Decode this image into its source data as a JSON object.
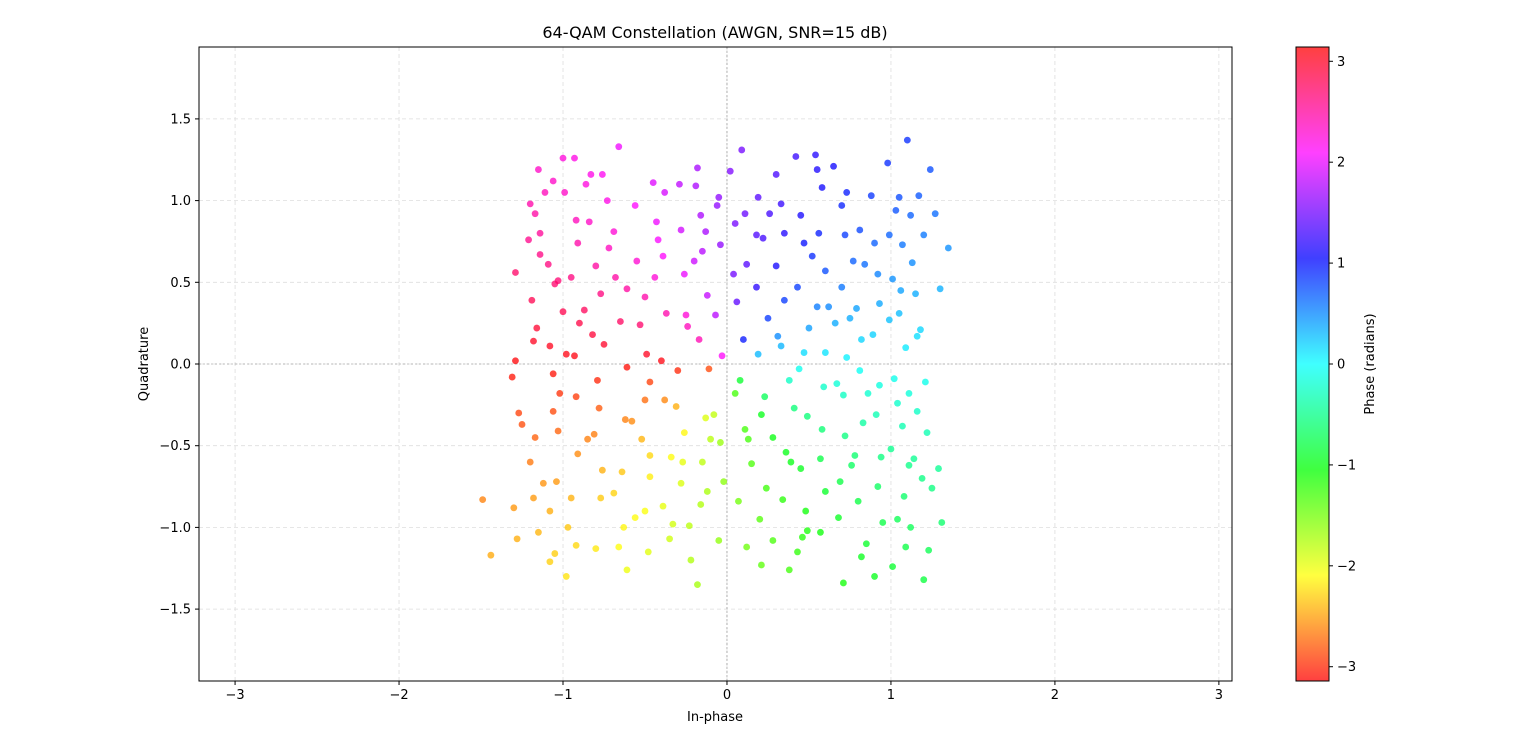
{
  "chart_data": {
    "type": "scatter",
    "title": "64-QAM Constellation (AWGN, SNR=15 dB)",
    "xlabel": "In-phase",
    "ylabel": "Quadrature",
    "xlim": [
      -3.22,
      3.08
    ],
    "ylim": [
      -1.94,
      1.94
    ],
    "xticks": [
      -3,
      -2,
      -1,
      0,
      1,
      2,
      3
    ],
    "xtick_labels": [
      "−3",
      "−2",
      "−1",
      "0",
      "1",
      "2",
      "3"
    ],
    "yticks": [
      -1.5,
      -1.0,
      -0.5,
      0.0,
      0.5,
      1.0,
      1.5
    ],
    "ytick_labels": [
      "−1.5",
      "−1.0",
      "−0.5",
      "0.0",
      "0.5",
      "1.0",
      "1.5"
    ],
    "grid": true,
    "grid_style": "dashed",
    "zero_reference_lines": true,
    "marker_alpha": 0.75,
    "colormap": "hsv",
    "colorbar": {
      "label": "Phase (radians)",
      "range": [
        -3.14159,
        3.14159
      ],
      "ticks": [
        -3,
        -2,
        -1,
        0,
        1,
        2,
        3
      ],
      "tick_labels": [
        "−3",
        "−2",
        "−1",
        "0",
        "1",
        "2",
        "3"
      ],
      "placement": "right"
    },
    "constellation": {
      "order": 64,
      "levels": [
        -1.08,
        -0.77,
        -0.46,
        -0.15,
        0.15,
        0.46,
        0.77,
        1.08
      ],
      "noise_snr_db": 15
    },
    "points": [
      [
        -1.49,
        -0.83
      ],
      [
        -1.44,
        -1.17
      ],
      [
        -1.3,
        -0.88
      ],
      [
        -1.28,
        -1.07
      ],
      [
        -1.27,
        -0.3
      ],
      [
        -1.29,
        0.02
      ],
      [
        -1.31,
        -0.08
      ],
      [
        -1.29,
        0.56
      ],
      [
        -1.21,
        0.76
      ],
      [
        -1.2,
        0.98
      ],
      [
        -1.17,
        0.92
      ],
      [
        -1.15,
        1.19
      ],
      [
        -1.11,
        1.05
      ],
      [
        -1.14,
        0.8
      ],
      [
        -1.19,
        0.39
      ],
      [
        -1.16,
        0.22
      ],
      [
        -1.17,
        -0.45
      ],
      [
        -1.2,
        -0.6
      ],
      [
        -1.18,
        -0.82
      ],
      [
        -1.15,
        -1.03
      ],
      [
        -1.08,
        -1.21
      ],
      [
        -1.05,
        -1.16
      ],
      [
        -1.03,
        0.51
      ],
      [
        -1.05,
        0.49
      ],
      [
        -1.0,
        0.32
      ],
      [
        -1.08,
        0.11
      ],
      [
        -1.06,
        -0.06
      ],
      [
        -1.02,
        -0.18
      ],
      [
        -1.06,
        -0.29
      ],
      [
        -1.04,
        -0.72
      ],
      [
        -1.08,
        -0.9
      ],
      [
        -1.0,
        1.26
      ],
      [
        -0.99,
        1.05
      ],
      [
        -0.93,
        1.26
      ],
      [
        -0.91,
        0.74
      ],
      [
        -0.95,
        0.53
      ],
      [
        -0.9,
        0.25
      ],
      [
        -0.93,
        0.05
      ],
      [
        -0.92,
        -0.2
      ],
      [
        -0.91,
        -0.55
      ],
      [
        -0.97,
        -1.0
      ],
      [
        -0.92,
        -1.11
      ],
      [
        -0.98,
        -1.3
      ],
      [
        -0.86,
        1.1
      ],
      [
        -0.84,
        0.87
      ],
      [
        -0.8,
        0.6
      ],
      [
        -0.77,
        0.43
      ],
      [
        -0.82,
        0.18
      ],
      [
        -0.79,
        -0.1
      ],
      [
        -0.81,
        -0.43
      ],
      [
        -0.76,
        -0.65
      ],
      [
        -0.77,
        -0.82
      ],
      [
        -0.8,
        -1.13
      ],
      [
        -0.76,
        1.16
      ],
      [
        -0.73,
        1.0
      ],
      [
        -0.69,
        0.81
      ],
      [
        -0.68,
        0.53
      ],
      [
        -0.65,
        0.26
      ],
      [
        -0.61,
        -0.02
      ],
      [
        -0.62,
        -0.34
      ],
      [
        -0.64,
        -0.66
      ],
      [
        -0.63,
        -1.0
      ],
      [
        -0.61,
        -1.26
      ],
      [
        -0.66,
        1.33
      ],
      [
        -0.56,
        0.97
      ],
      [
        -0.55,
        0.63
      ],
      [
        -0.5,
        0.41
      ],
      [
        -0.49,
        0.06
      ],
      [
        -0.47,
        -0.11
      ],
      [
        -0.52,
        -0.46
      ],
      [
        -0.47,
        -0.69
      ],
      [
        -0.5,
        -0.9
      ],
      [
        -0.48,
        -1.15
      ],
      [
        -0.45,
        1.11
      ],
      [
        -0.43,
        0.87
      ],
      [
        -0.39,
        0.66
      ],
      [
        -0.37,
        0.31
      ],
      [
        -0.4,
        0.02
      ],
      [
        -0.38,
        -0.22
      ],
      [
        -0.34,
        -0.57
      ],
      [
        -0.39,
        -0.87
      ],
      [
        -0.35,
        -1.07
      ],
      [
        -0.29,
        1.1
      ],
      [
        -0.28,
        0.82
      ],
      [
        -0.26,
        0.55
      ],
      [
        -0.24,
        0.23
      ],
      [
        -0.3,
        -0.04
      ],
      [
        -0.26,
        -0.42
      ],
      [
        -0.28,
        -0.73
      ],
      [
        -0.23,
        -0.99
      ],
      [
        -0.22,
        -1.2
      ],
      [
        -0.18,
        1.2
      ],
      [
        -0.16,
        0.91
      ],
      [
        -0.15,
        0.69
      ],
      [
        -0.12,
        0.42
      ],
      [
        -0.17,
        0.15
      ],
      [
        -0.11,
        -0.03
      ],
      [
        -0.13,
        -0.33
      ],
      [
        -0.15,
        -0.6
      ],
      [
        -0.12,
        -0.78
      ],
      [
        -0.18,
        -1.35
      ],
      [
        -0.06,
        0.97
      ],
      [
        -0.04,
        0.73
      ],
      [
        -0.07,
        0.3
      ],
      [
        -0.03,
        0.05
      ],
      [
        -0.04,
        -0.48
      ],
      [
        -0.02,
        -0.72
      ],
      [
        -0.05,
        -1.08
      ],
      [
        0.02,
        1.18
      ],
      [
        0.05,
        0.86
      ],
      [
        0.09,
        1.31
      ],
      [
        0.12,
        0.61
      ],
      [
        0.06,
        0.38
      ],
      [
        0.1,
        0.15
      ],
      [
        0.08,
        -0.1
      ],
      [
        0.11,
        -0.4
      ],
      [
        0.07,
        -0.84
      ],
      [
        0.12,
        -1.12
      ],
      [
        0.19,
        1.02
      ],
      [
        0.22,
        0.77
      ],
      [
        0.18,
        0.47
      ],
      [
        0.25,
        0.28
      ],
      [
        0.19,
        0.06
      ],
      [
        0.23,
        -0.2
      ],
      [
        0.28,
        -0.45
      ],
      [
        0.24,
        -0.76
      ],
      [
        0.2,
        -0.95
      ],
      [
        0.21,
        -1.23
      ],
      [
        0.3,
        1.16
      ],
      [
        0.33,
        0.98
      ],
      [
        0.3,
        0.6
      ],
      [
        0.35,
        0.39
      ],
      [
        0.33,
        0.11
      ],
      [
        0.38,
        -0.1
      ],
      [
        0.36,
        -0.54
      ],
      [
        0.34,
        -0.83
      ],
      [
        0.38,
        -1.26
      ],
      [
        0.42,
        1.27
      ],
      [
        0.45,
        0.91
      ],
      [
        0.47,
        0.74
      ],
      [
        0.43,
        0.47
      ],
      [
        0.5,
        0.22
      ],
      [
        0.44,
        -0.03
      ],
      [
        0.49,
        -0.32
      ],
      [
        0.45,
        -0.64
      ],
      [
        0.48,
        -0.9
      ],
      [
        0.46,
        -1.06
      ],
      [
        0.54,
        1.28
      ],
      [
        0.58,
        1.08
      ],
      [
        0.56,
        0.8
      ],
      [
        0.6,
        0.57
      ],
      [
        0.55,
        0.35
      ],
      [
        0.6,
        0.07
      ],
      [
        0.59,
        -0.14
      ],
      [
        0.57,
        -0.58
      ],
      [
        0.6,
        -0.78
      ],
      [
        0.57,
        -1.03
      ],
      [
        0.65,
        1.21
      ],
      [
        0.7,
        0.97
      ],
      [
        0.72,
        0.79
      ],
      [
        0.7,
        0.47
      ],
      [
        0.75,
        0.28
      ],
      [
        0.73,
        0.04
      ],
      [
        0.71,
        -0.19
      ],
      [
        0.72,
        -0.44
      ],
      [
        0.69,
        -0.72
      ],
      [
        0.71,
        -1.34
      ],
      [
        0.81,
        0.82
      ],
      [
        0.84,
        0.61
      ],
      [
        0.79,
        0.34
      ],
      [
        0.81,
        -0.04
      ],
      [
        0.83,
        -0.36
      ],
      [
        0.78,
        -0.56
      ],
      [
        0.8,
        -0.84
      ],
      [
        0.82,
        -1.18
      ],
      [
        0.85,
        -1.1
      ],
      [
        0.88,
        1.03
      ],
      [
        0.9,
        0.74
      ],
      [
        0.92,
        0.55
      ],
      [
        0.89,
        0.18
      ],
      [
        0.93,
        -0.13
      ],
      [
        0.91,
        -0.31
      ],
      [
        0.92,
        -0.75
      ],
      [
        0.9,
        -1.3
      ],
      [
        0.98,
        1.23
      ],
      [
        1.01,
        0.52
      ],
      [
        0.99,
        0.27
      ],
      [
        1.02,
        -0.09
      ],
      [
        1.0,
        -0.52
      ],
      [
        1.04,
        -0.95
      ],
      [
        1.01,
        -1.24
      ],
      [
        1.05,
        1.02
      ],
      [
        1.07,
        0.73
      ],
      [
        1.05,
        0.31
      ],
      [
        1.09,
        0.1
      ],
      [
        1.07,
        -0.38
      ],
      [
        1.08,
        -0.81
      ],
      [
        1.09,
        -1.12
      ],
      [
        1.1,
        1.37
      ],
      [
        1.12,
        0.91
      ],
      [
        1.13,
        0.62
      ],
      [
        1.15,
        0.43
      ],
      [
        1.11,
        -0.18
      ],
      [
        1.14,
        -0.58
      ],
      [
        1.12,
        -1.0
      ],
      [
        1.17,
        1.03
      ],
      [
        1.2,
        0.79
      ],
      [
        1.18,
        0.21
      ],
      [
        1.21,
        -0.11
      ],
      [
        1.19,
        -0.7
      ],
      [
        1.2,
        -1.32
      ],
      [
        1.24,
        1.19
      ],
      [
        1.27,
        0.92
      ],
      [
        1.25,
        -0.76
      ],
      [
        1.23,
        -1.14
      ],
      [
        1.3,
        0.46
      ],
      [
        1.29,
        -0.64
      ],
      [
        1.31,
        -0.97
      ],
      [
        1.35,
        0.71
      ],
      [
        -1.25,
        -0.37
      ],
      [
        -1.14,
        0.67
      ],
      [
        -0.98,
        0.06
      ],
      [
        -0.85,
        -0.46
      ],
      [
        -0.72,
        0.71
      ],
      [
        -0.58,
        -0.35
      ],
      [
        -0.44,
        0.53
      ],
      [
        -0.31,
        -0.26
      ],
      [
        -0.2,
        0.63
      ],
      [
        -0.08,
        -0.31
      ],
      [
        0.15,
        -0.61
      ],
      [
        0.26,
        0.92
      ],
      [
        0.41,
        -0.27
      ],
      [
        0.52,
        0.66
      ],
      [
        0.67,
        -0.12
      ],
      [
        0.77,
        0.63
      ],
      [
        0.94,
        -0.57
      ],
      [
        1.06,
        0.45
      ],
      [
        1.16,
        -0.29
      ],
      [
        -1.12,
        -0.73
      ],
      [
        -0.92,
        0.88
      ],
      [
        -0.69,
        -0.79
      ],
      [
        -0.53,
        0.24
      ],
      [
        -0.33,
        -0.98
      ],
      [
        -0.13,
        0.81
      ],
      [
        0.05,
        -0.18
      ],
      [
        0.31,
        0.17
      ],
      [
        0.49,
        -1.02
      ],
      [
        0.62,
        0.35
      ],
      [
        0.86,
        -0.18
      ],
      [
        1.03,
        0.94
      ],
      [
        1.22,
        -0.42
      ],
      [
        -1.18,
        0.14
      ],
      [
        -0.83,
        1.16
      ],
      [
        -0.47,
        -0.56
      ],
      [
        -0.16,
        -0.86
      ],
      [
        0.18,
        0.79
      ],
      [
        0.39,
        -0.6
      ],
      [
        0.73,
        1.05
      ],
      [
        0.95,
        -0.97
      ],
      [
        -1.06,
        1.12
      ],
      [
        -0.61,
        0.46
      ],
      [
        -0.25,
        0.3
      ],
      [
        0.13,
        -0.46
      ],
      [
        0.58,
        -0.4
      ],
      [
        0.99,
        0.79
      ],
      [
        -0.95,
        -0.82
      ],
      [
        -0.38,
        1.05
      ],
      [
        0.28,
        -1.08
      ],
      [
        0.82,
        0.15
      ],
      [
        -0.78,
        -0.27
      ],
      [
        -0.05,
        1.02
      ],
      [
        0.47,
        0.07
      ],
      [
        1.11,
        -0.62
      ],
      [
        -1.09,
        0.61
      ],
      [
        -0.56,
        -0.94
      ],
      [
        0.04,
        0.55
      ],
      [
        0.68,
        -0.94
      ],
      [
        -0.87,
        0.33
      ],
      [
        -0.27,
        -0.6
      ],
      [
        0.35,
        0.8
      ],
      [
        0.93,
        0.37
      ],
      [
        -0.66,
        -1.12
      ],
      [
        -0.1,
        -0.46
      ],
      [
        0.55,
        1.19
      ],
      [
        1.16,
        0.17
      ],
      [
        -1.03,
        -0.41
      ],
      [
        -0.42,
        0.76
      ],
      [
        0.21,
        -0.31
      ],
      [
        0.76,
        -0.62
      ],
      [
        -0.75,
        0.12
      ],
      [
        -0.19,
        1.09
      ],
      [
        0.43,
        -1.15
      ],
      [
        1.04,
        -0.24
      ],
      [
        -0.5,
        -0.22
      ],
      [
        0.11,
        0.92
      ],
      [
        0.66,
        0.25
      ]
    ]
  }
}
